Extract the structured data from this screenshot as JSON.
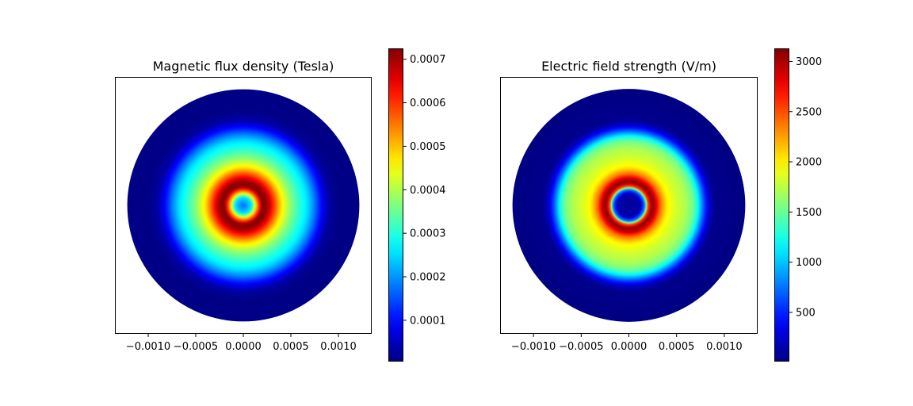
{
  "figure": {
    "background": "#ffffff",
    "colormap": "jet"
  },
  "chart_data": [
    {
      "type": "heatmap",
      "title": "Magnetic flux density (Tesla)",
      "xlim": [
        -0.00135,
        0.00135
      ],
      "ylim": [
        -0.00135,
        0.00135
      ],
      "x_ticks": [
        -0.001,
        -0.0005,
        0.0,
        0.0005,
        0.001
      ],
      "x_tick_labels": [
        "−0.0010",
        "−0.0005",
        "0.0000",
        "0.0005",
        "0.0010"
      ],
      "y_ticks_visible": false,
      "domain": {
        "shape": "disk",
        "center": [
          0,
          0
        ],
        "radius": 0.00122
      },
      "radial_profile": {
        "r": [
          0,
          8e-05,
          0.00015,
          0.0002,
          0.00025,
          0.0003,
          0.00035,
          0.0004,
          0.0005,
          0.0006,
          0.00068,
          0.00075,
          0.00082,
          0.0009,
          0.001,
          0.00122
        ],
        "value": [
          0.00017,
          0.00025,
          0.00055,
          0.00072,
          0.00071,
          0.00063,
          0.00055,
          0.00047,
          0.00037,
          0.0003,
          0.00025,
          0.00018,
          0.0001,
          3e-05,
          1e-05,
          1e-05
        ]
      },
      "colorbar": {
        "min": 5e-06,
        "max": 0.000725,
        "ticks": [
          0.0001,
          0.0002,
          0.0003,
          0.0004,
          0.0005,
          0.0006,
          0.0007
        ],
        "tick_labels": [
          "0.0001",
          "0.0002",
          "0.0003",
          "0.0004",
          "0.0005",
          "0.0006",
          "0.0007"
        ]
      }
    },
    {
      "type": "heatmap",
      "title": "Electric field strength (V/m)",
      "xlim": [
        -0.00135,
        0.00135
      ],
      "ylim": [
        -0.00135,
        0.00135
      ],
      "x_ticks": [
        -0.001,
        -0.0005,
        0.0,
        0.0005,
        0.001
      ],
      "x_tick_labels": [
        "−0.0010",
        "−0.0005",
        "0.0000",
        "0.0005",
        "0.0010"
      ],
      "y_ticks_visible": false,
      "domain": {
        "shape": "disk",
        "center": [
          0,
          0
        ],
        "radius": 0.00122
      },
      "radial_profile": {
        "r": [
          0,
          0.00012,
          0.00017,
          0.0002,
          0.00024,
          0.00028,
          0.00033,
          0.0004,
          0.00048,
          0.0006,
          0.00068,
          0.00073,
          0.00078,
          0.00084,
          0.0009,
          0.00122
        ],
        "value": [
          80,
          150,
          900,
          2500,
          3100,
          2900,
          2400,
          2000,
          1850,
          1700,
          1500,
          1150,
          700,
          250,
          50,
          20
        ]
      },
      "colorbar": {
        "min": 10,
        "max": 3130,
        "ticks": [
          500,
          1000,
          1500,
          2000,
          2500,
          3000
        ],
        "tick_labels": [
          "500",
          "1000",
          "1500",
          "2000",
          "2500",
          "3000"
        ]
      }
    }
  ]
}
